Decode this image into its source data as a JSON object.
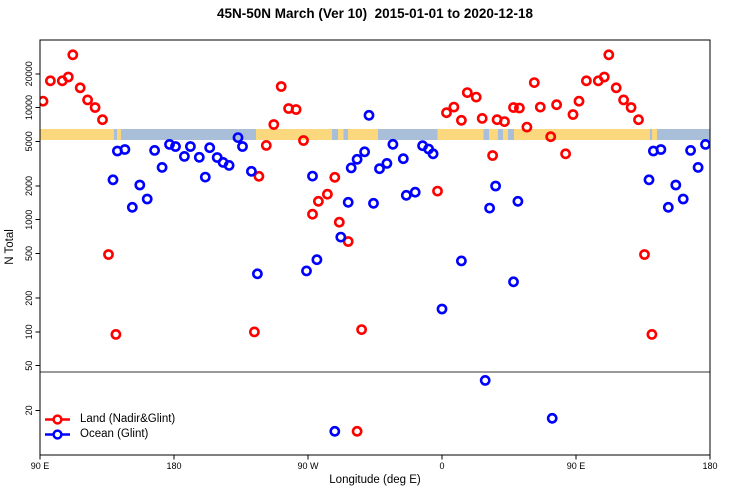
{
  "chart_data": {
    "type": "scatter",
    "title": "45N-50N March (Ver 10)  2015-01-01 to 2020-12-18",
    "xlabel": "Longitude (deg E)",
    "ylabel": "N Total",
    "x_axis": {
      "domain": [
        90,
        540
      ],
      "ticks": [
        {
          "lon": 90,
          "label": "90 E"
        },
        {
          "lon": 180,
          "label": "180"
        },
        {
          "lon": 270,
          "label": "90 W"
        },
        {
          "lon": 360,
          "label": "0"
        },
        {
          "lon": 450,
          "label": "90 E"
        },
        {
          "lon": 540,
          "label": "180"
        }
      ]
    },
    "y_axis": {
      "scale": "log",
      "range": [
        8,
        40000
      ],
      "ticks": [
        20000,
        10000,
        5000,
        2000,
        1000,
        500,
        200,
        100,
        50,
        20
      ]
    },
    "reference_line_value": 44,
    "surface_band": {
      "center_value": 5750,
      "land_color": "#FBD77D",
      "ocean_color": "#A9BFD9",
      "segments": [
        {
          "type": "land",
          "from": 90,
          "to": 139.7
        },
        {
          "type": "ocean",
          "from": 139.7,
          "to": 141.7
        },
        {
          "type": "land",
          "from": 141.7,
          "to": 144.4
        },
        {
          "type": "ocean",
          "from": 144.4,
          "to": 235
        },
        {
          "type": "land",
          "from": 235,
          "to": 286
        },
        {
          "type": "ocean",
          "from": 286,
          "to": 290
        },
        {
          "type": "land",
          "from": 290,
          "to": 294
        },
        {
          "type": "ocean",
          "from": 294,
          "to": 297
        },
        {
          "type": "land",
          "from": 297,
          "to": 317
        },
        {
          "type": "ocean",
          "from": 317,
          "to": 357
        },
        {
          "type": "land",
          "from": 357,
          "to": 388
        },
        {
          "type": "ocean",
          "from": 388,
          "to": 391.5
        },
        {
          "type": "land",
          "from": 391.5,
          "to": 397.5
        },
        {
          "type": "ocean",
          "from": 397.5,
          "to": 401
        },
        {
          "type": "land",
          "from": 401,
          "to": 404.3
        },
        {
          "type": "ocean",
          "from": 404.3,
          "to": 408.3
        },
        {
          "type": "land",
          "from": 408.3,
          "to": 499.7
        },
        {
          "type": "ocean",
          "from": 499.7,
          "to": 501
        },
        {
          "type": "land",
          "from": 501,
          "to": 504.3
        },
        {
          "type": "ocean",
          "from": 504.3,
          "to": 540
        }
      ]
    },
    "series": [
      {
        "name": "Land (Nadir&Glint)",
        "color": "#FF0000",
        "marker": "open-circle",
        "points": [
          [
            92,
            11400
          ],
          [
            97,
            17300
          ],
          [
            105,
            17300
          ],
          [
            109,
            18700
          ],
          [
            112,
            29500
          ],
          [
            117,
            15000
          ],
          [
            122,
            11700
          ],
          [
            127,
            10000
          ],
          [
            132,
            7800
          ],
          [
            136,
            490
          ],
          [
            141,
            95
          ],
          [
            234,
            100
          ],
          [
            237,
            2440
          ],
          [
            242,
            4600
          ],
          [
            247,
            7060
          ],
          [
            252,
            15400
          ],
          [
            257,
            9800
          ],
          [
            262,
            9600
          ],
          [
            267,
            5090
          ],
          [
            273,
            1120
          ],
          [
            277,
            1460
          ],
          [
            283,
            1690
          ],
          [
            288,
            2390
          ],
          [
            291,
            950
          ],
          [
            297,
            640
          ],
          [
            303,
            13
          ],
          [
            306,
            105
          ],
          [
            357,
            1800
          ],
          [
            363,
            9000
          ],
          [
            368,
            10100
          ],
          [
            373,
            7700
          ],
          [
            377,
            13600
          ],
          [
            383,
            12400
          ],
          [
            387,
            8000
          ],
          [
            394,
            3740
          ],
          [
            397,
            7800
          ],
          [
            402,
            7500
          ],
          [
            408,
            10000
          ],
          [
            412,
            9900
          ],
          [
            417,
            6700
          ],
          [
            422,
            16700
          ],
          [
            426,
            10100
          ],
          [
            433,
            5500
          ],
          [
            437,
            10600
          ],
          [
            443,
            3870
          ],
          [
            448,
            8670
          ],
          [
            452,
            11400
          ],
          [
            457,
            17300
          ],
          [
            465,
            17300
          ],
          [
            469,
            18700
          ],
          [
            472,
            29500
          ],
          [
            477,
            15000
          ],
          [
            482,
            11700
          ],
          [
            487,
            10000
          ],
          [
            492,
            7800
          ],
          [
            496,
            490
          ],
          [
            501,
            95
          ]
        ]
      },
      {
        "name": "Ocean (Glint)",
        "color": "#0000FF",
        "marker": "open-circle",
        "points": [
          [
            139,
            2270
          ],
          [
            142,
            4100
          ],
          [
            147,
            4230
          ],
          [
            152,
            1290
          ],
          [
            157,
            2040
          ],
          [
            162,
            1530
          ],
          [
            167,
            4150
          ],
          [
            172,
            2930
          ],
          [
            177,
            4690
          ],
          [
            181,
            4500
          ],
          [
            187,
            3670
          ],
          [
            191,
            4500
          ],
          [
            197,
            3600
          ],
          [
            201,
            2400
          ],
          [
            204,
            4390
          ],
          [
            209,
            3590
          ],
          [
            213,
            3245
          ],
          [
            217,
            3050
          ],
          [
            223,
            5400
          ],
          [
            226,
            4500
          ],
          [
            232,
            2700
          ],
          [
            236,
            330
          ],
          [
            269,
            350
          ],
          [
            273,
            2450
          ],
          [
            276,
            440
          ],
          [
            288,
            13
          ],
          [
            292,
            700
          ],
          [
            297,
            1430
          ],
          [
            299,
            2900
          ],
          [
            303,
            3460
          ],
          [
            308,
            4030
          ],
          [
            311,
            8530
          ],
          [
            314,
            1400
          ],
          [
            318,
            2850
          ],
          [
            323,
            3180
          ],
          [
            327,
            4700
          ],
          [
            334,
            3500
          ],
          [
            336,
            1650
          ],
          [
            342,
            1760
          ],
          [
            347,
            4570
          ],
          [
            351,
            4270
          ],
          [
            354,
            3870
          ],
          [
            360,
            160
          ],
          [
            373,
            430
          ],
          [
            389,
            37
          ],
          [
            392,
            1270
          ],
          [
            396,
            2000
          ],
          [
            408,
            280
          ],
          [
            411,
            1460
          ],
          [
            434,
            17
          ],
          [
            499,
            2270
          ],
          [
            502,
            4100
          ],
          [
            507,
            4230
          ],
          [
            512,
            1290
          ],
          [
            517,
            2040
          ],
          [
            522,
            1530
          ],
          [
            527,
            4150
          ],
          [
            532,
            2930
          ],
          [
            537,
            4690
          ]
        ]
      }
    ]
  },
  "legend": {
    "items": [
      {
        "label": "Land (Nadir&Glint)",
        "color": "#FF0000"
      },
      {
        "label": "Ocean (Glint)",
        "color": "#0000FF"
      }
    ]
  }
}
